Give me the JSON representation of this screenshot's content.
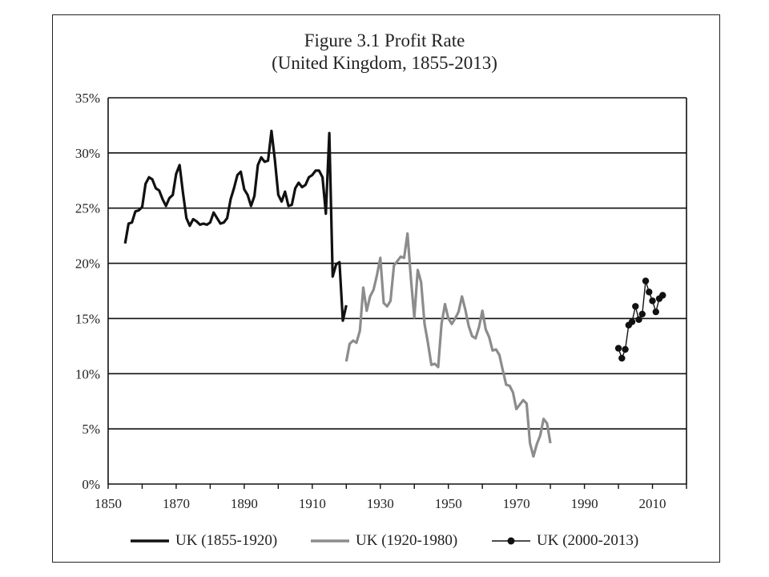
{
  "chart_data": {
    "type": "line",
    "title": "Figure 3.1 Profit Rate",
    "subtitle": "(United Kingdom, 1855-2013)",
    "xlim": [
      1850,
      2020
    ],
    "ylim": [
      0,
      35
    ],
    "x_ticks": [
      "1850",
      "1870",
      "1890",
      "1910",
      "1930",
      "1950",
      "1970",
      "1990",
      "2010"
    ],
    "y_ticks": [
      "0%",
      "5%",
      "10%",
      "15%",
      "20%",
      "25%",
      "30%",
      "35%"
    ],
    "grid": "horizontal",
    "legend_position": "bottom",
    "series": [
      {
        "name": "UK (1855-1920)",
        "color": "#111111",
        "markers": false,
        "x": [
          1855,
          1856,
          1857,
          1858,
          1859,
          1860,
          1861,
          1862,
          1863,
          1864,
          1865,
          1866,
          1867,
          1868,
          1869,
          1870,
          1871,
          1872,
          1873,
          1874,
          1875,
          1876,
          1877,
          1878,
          1879,
          1880,
          1881,
          1882,
          1883,
          1884,
          1885,
          1886,
          1887,
          1888,
          1889,
          1890,
          1891,
          1892,
          1893,
          1894,
          1895,
          1896,
          1897,
          1898,
          1899,
          1900,
          1901,
          1902,
          1903,
          1904,
          1905,
          1906,
          1907,
          1908,
          1909,
          1910,
          1911,
          1912,
          1913,
          1914,
          1915,
          1916,
          1917,
          1918,
          1919,
          1920
        ],
        "values": [
          21.8,
          23.6,
          23.7,
          24.7,
          24.8,
          25.1,
          27.2,
          27.8,
          27.6,
          26.8,
          26.6,
          25.8,
          25.2,
          25.9,
          26.2,
          28.1,
          28.9,
          26.4,
          24.1,
          23.4,
          24.0,
          23.8,
          23.5,
          23.6,
          23.5,
          23.7,
          24.6,
          24.1,
          23.6,
          23.7,
          24.1,
          25.8,
          26.8,
          28.0,
          28.3,
          26.7,
          26.2,
          25.2,
          26.1,
          28.9,
          29.6,
          29.2,
          29.3,
          32.0,
          29.4,
          26.2,
          25.6,
          26.5,
          25.2,
          25.3,
          26.8,
          27.3,
          26.9,
          27.1,
          27.8,
          28.0,
          28.4,
          28.4,
          27.8,
          24.5,
          31.8,
          18.8,
          19.9,
          20.1,
          14.8,
          16.2
        ]
      },
      {
        "name": "UK (1920-1980)",
        "color": "#8c8c8c",
        "markers": false,
        "x": [
          1920,
          1921,
          1922,
          1923,
          1924,
          1925,
          1926,
          1927,
          1928,
          1929,
          1930,
          1931,
          1932,
          1933,
          1934,
          1935,
          1936,
          1937,
          1938,
          1939,
          1940,
          1941,
          1942,
          1943,
          1944,
          1945,
          1946,
          1947,
          1948,
          1949,
          1950,
          1951,
          1952,
          1953,
          1954,
          1955,
          1956,
          1957,
          1958,
          1959,
          1960,
          1961,
          1962,
          1963,
          1964,
          1965,
          1966,
          1967,
          1968,
          1969,
          1970,
          1971,
          1972,
          1973,
          1974,
          1975,
          1976,
          1977,
          1978,
          1979,
          1980
        ],
        "values": [
          11.1,
          12.7,
          13.0,
          12.8,
          13.9,
          17.8,
          15.7,
          17.0,
          17.6,
          18.9,
          20.5,
          16.4,
          16.1,
          16.6,
          19.8,
          20.2,
          20.6,
          20.5,
          22.7,
          18.6,
          15.1,
          19.4,
          18.3,
          14.5,
          12.8,
          10.8,
          10.9,
          10.6,
          14.5,
          16.3,
          15.0,
          14.5,
          15.0,
          15.6,
          17.0,
          15.8,
          14.3,
          13.4,
          13.2,
          14.2,
          15.7,
          14.0,
          13.3,
          12.1,
          12.2,
          11.7,
          10.3,
          9.0,
          8.9,
          8.3,
          6.8,
          7.2,
          7.6,
          7.3,
          3.7,
          2.5,
          3.6,
          4.4,
          5.9,
          5.5,
          3.7
        ]
      },
      {
        "name": "UK (2000-2013)",
        "color": "#111111",
        "markers": true,
        "x": [
          2000,
          2001,
          2002,
          2003,
          2004,
          2005,
          2006,
          2007,
          2008,
          2009,
          2010,
          2011,
          2012,
          2013
        ],
        "values": [
          12.3,
          11.4,
          12.2,
          14.4,
          14.7,
          16.1,
          14.9,
          15.4,
          18.4,
          17.4,
          16.6,
          15.6,
          16.8,
          17.1
        ]
      }
    ]
  }
}
